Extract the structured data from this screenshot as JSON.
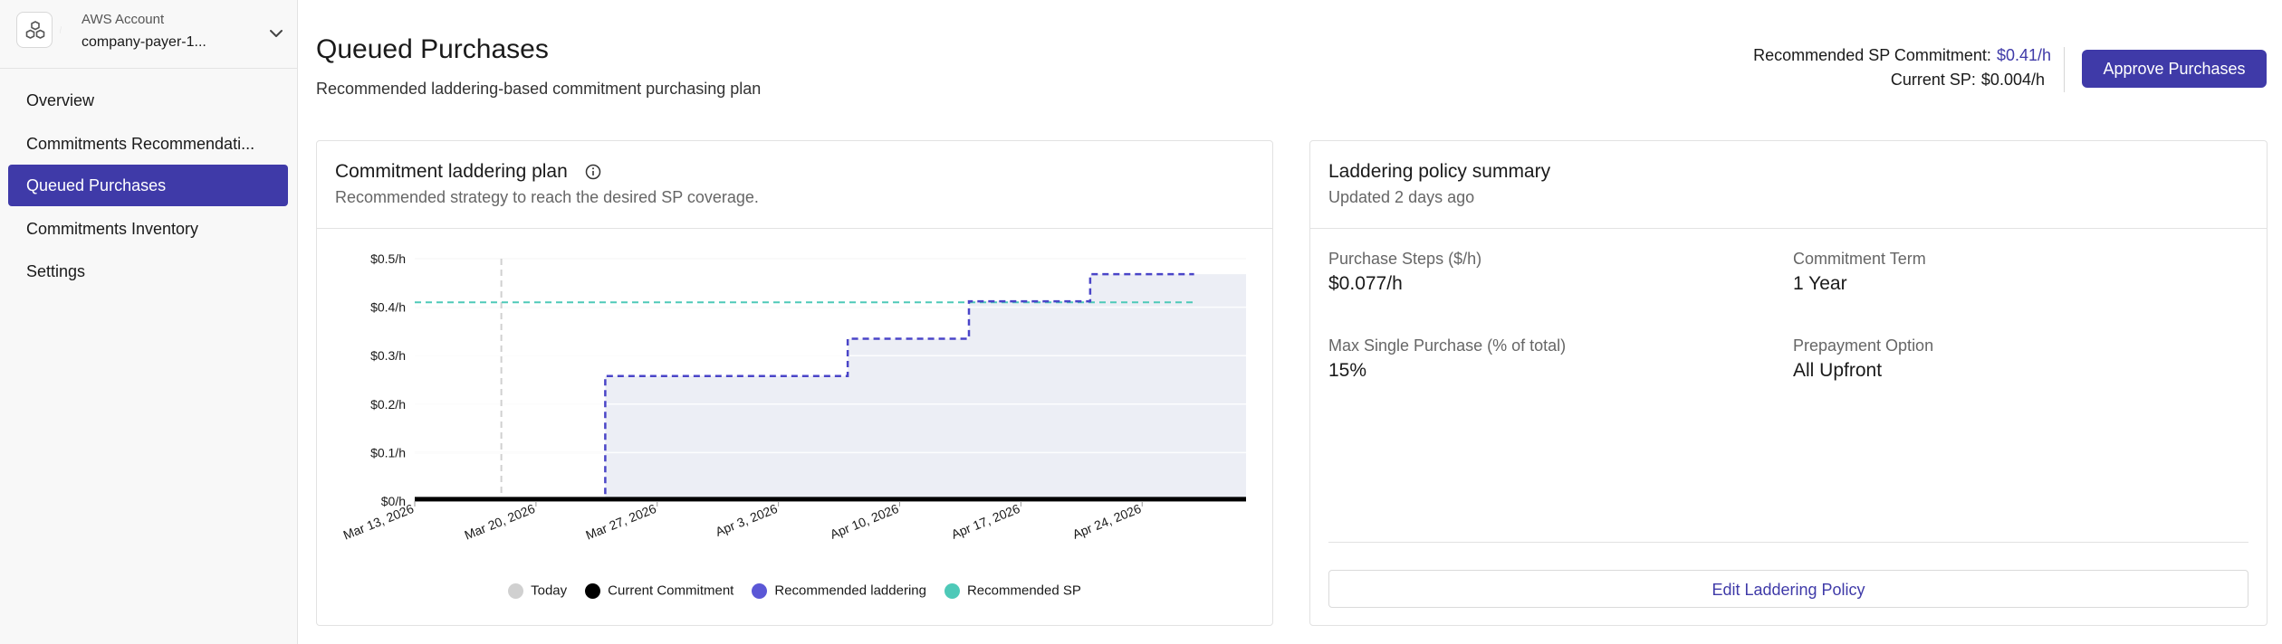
{
  "account": {
    "label": "AWS Account",
    "name": "company-payer-1..."
  },
  "sidebar": {
    "items": [
      {
        "label": "Overview"
      },
      {
        "label": "Commitments Recommendati..."
      },
      {
        "label": "Queued Purchases"
      },
      {
        "label": "Commitments Inventory"
      },
      {
        "label": "Settings"
      }
    ],
    "active_index": 2
  },
  "header": {
    "title": "Queued Purchases",
    "subtitle": "Recommended laddering-based commitment purchasing plan",
    "recommended_label": "Recommended SP Commitment:",
    "recommended_value": "$0.41/h",
    "current_label": "Current SP:",
    "current_value": "$0.004/h",
    "approve_label": "Approve Purchases"
  },
  "colors": {
    "accent": "#3f3aa8",
    "ladder_line": "#4a45c8",
    "rec_sp": "#4ec9b8",
    "today": "#d0d0d0",
    "current": "#000000",
    "area_fill": "#eceef5"
  },
  "plan_card": {
    "title": "Commitment laddering plan",
    "subtitle": "Recommended strategy to reach the desired SP coverage."
  },
  "chart_data": {
    "type": "line",
    "title": "",
    "xlabel": "",
    "ylabel": "",
    "y_ticks": [
      "$0/h",
      "$0.1/h",
      "$0.2/h",
      "$0.3/h",
      "$0.4/h",
      "$0.5/h"
    ],
    "y_tick_values": [
      0,
      0.1,
      0.2,
      0.3,
      0.4,
      0.5
    ],
    "ylim": [
      0,
      0.5
    ],
    "x_ticks": [
      "Mar 13, 2026",
      "Mar 20, 2026",
      "Mar 27, 2026",
      "Apr 3, 2026",
      "Apr 10, 2026",
      "Apr 17, 2026",
      "Apr 24, 2026"
    ],
    "x_range": [
      "2026-03-13",
      "2026-04-30"
    ],
    "today": "2026-03-18",
    "series": [
      {
        "name": "Current Commitment",
        "style": "solid",
        "points": [
          [
            "2026-03-13",
            0.004
          ],
          [
            "2026-04-30",
            0.004
          ]
        ]
      },
      {
        "name": "Recommended laddering",
        "style": "dashed-step",
        "points": [
          [
            "2026-03-13",
            0.004
          ],
          [
            "2026-03-24",
            0.004
          ],
          [
            "2026-03-24",
            0.258
          ],
          [
            "2026-04-07",
            0.258
          ],
          [
            "2026-04-07",
            0.335
          ],
          [
            "2026-04-14",
            0.335
          ],
          [
            "2026-04-14",
            0.412
          ],
          [
            "2026-04-21",
            0.412
          ],
          [
            "2026-04-21",
            0.468
          ],
          [
            "2026-04-27",
            0.468
          ]
        ]
      },
      {
        "name": "Recommended SP",
        "style": "dashed",
        "points": [
          [
            "2026-03-13",
            0.41
          ],
          [
            "2026-04-27",
            0.41
          ]
        ]
      }
    ],
    "legend": [
      {
        "label": "Today",
        "color": "#d0d0d0"
      },
      {
        "label": "Current Commitment",
        "color": "#000000"
      },
      {
        "label": "Recommended laddering",
        "color": "#5b57d6"
      },
      {
        "label": "Recommended SP",
        "color": "#4ec9b8"
      }
    ],
    "legend_position": "bottom",
    "grid": true
  },
  "policy_card": {
    "title": "Laddering policy summary",
    "subtitle": "Updated 2 days ago",
    "fields": [
      {
        "label": "Purchase Steps ($/h)",
        "value": "$0.077/h"
      },
      {
        "label": "Commitment Term",
        "value": "1 Year"
      },
      {
        "label": "Max Single Purchase (% of total)",
        "value": "15%"
      },
      {
        "label": "Prepayment Option",
        "value": "All Upfront"
      }
    ],
    "edit_label": "Edit Laddering Policy"
  }
}
